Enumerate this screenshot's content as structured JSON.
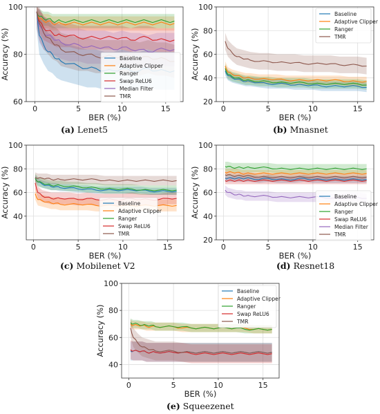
{
  "figure": {
    "captions": [
      {
        "letter": "(a)",
        "name": "Lenet5"
      },
      {
        "letter": "(b)",
        "name": "Mnasnet"
      },
      {
        "letter": "(c)",
        "name": "Mobilenet V2"
      },
      {
        "letter": "(d)",
        "name": "Resnet18"
      },
      {
        "letter": "(e)",
        "name": "Squeezenet"
      }
    ]
  },
  "colors": {
    "Baseline": "#1f77b4",
    "Adaptive Clipper": "#ff7f0e",
    "Ranger": "#2ca02c",
    "Swap ReLU6": "#d62728",
    "Median Filter": "#9467bd",
    "TMR": "#8c564b"
  },
  "chart_data": [
    {
      "type": "line",
      "title": "Lenet5",
      "xlabel": "BER (%)",
      "ylabel": "Accuracy (%)",
      "xlim": [
        -1,
        17
      ],
      "ylim": [
        60,
        100
      ],
      "xticks": [
        0,
        5,
        10,
        15
      ],
      "yticks": [
        60,
        80,
        100
      ],
      "grid": true,
      "legend_position": "lower-right",
      "x": [
        0.2,
        0.5,
        1,
        1.5,
        2,
        2.5,
        3,
        4,
        5,
        6,
        7,
        8,
        9,
        10,
        11,
        12,
        13,
        14,
        15,
        16
      ],
      "series": [
        {
          "name": "Baseline",
          "values": [
            98,
            88,
            84,
            81,
            80,
            78,
            77,
            76,
            75,
            74,
            74,
            73,
            73,
            74,
            73,
            73,
            74,
            73,
            73,
            73
          ],
          "band": 8
        },
        {
          "name": "Adaptive Clipper",
          "values": [
            98,
            95,
            94,
            94,
            93,
            93,
            93,
            93,
            93,
            93,
            93,
            93,
            93,
            93,
            93,
            93,
            93,
            93,
            93,
            93
          ],
          "band": 3
        },
        {
          "name": "Ranger",
          "values": [
            98,
            96,
            95,
            95,
            94,
            94,
            94,
            94,
            94,
            94,
            94,
            94,
            94,
            94,
            94,
            94,
            94,
            94,
            94,
            94
          ],
          "band": 3
        },
        {
          "name": "Swap ReLU6",
          "values": [
            98,
            94,
            91,
            90,
            89,
            88,
            88,
            88,
            87,
            87,
            87,
            87,
            87,
            87,
            86,
            87,
            87,
            86,
            86,
            86
          ],
          "band": 5
        },
        {
          "name": "Median Filter",
          "values": [
            98,
            92,
            89,
            88,
            87,
            86,
            85,
            84,
            84,
            83,
            83,
            83,
            82,
            83,
            82,
            82,
            81,
            82,
            82,
            82
          ],
          "band": 7
        },
        {
          "name": "TMR",
          "values": [
            98,
            93,
            89,
            87,
            85,
            84,
            82,
            81,
            80,
            80,
            79,
            79,
            79,
            79,
            79,
            78,
            79,
            78,
            78,
            77
          ],
          "band": 7
        }
      ]
    },
    {
      "type": "line",
      "title": "Mnasnet",
      "xlabel": "BER (%)",
      "ylabel": "Accuracy (%)",
      "xlim": [
        -0.8,
        16.8
      ],
      "ylim": [
        20,
        100
      ],
      "xticks": [
        0,
        5,
        10,
        15
      ],
      "yticks": [
        20,
        40,
        60,
        80,
        100
      ],
      "grid": true,
      "legend_position": "top-right",
      "x": [
        0.2,
        0.5,
        1,
        1.5,
        2,
        2.5,
        3,
        4,
        5,
        6,
        7,
        8,
        9,
        10,
        11,
        12,
        13,
        14,
        15,
        16
      ],
      "series": [
        {
          "name": "Baseline",
          "values": [
            46,
            42,
            40,
            39,
            38,
            37,
            37,
            36,
            35,
            35,
            35,
            34,
            34,
            34,
            33,
            33,
            33,
            33,
            33,
            32
          ],
          "band": 4
        },
        {
          "name": "Adaptive Clipper",
          "values": [
            50,
            45,
            43,
            42,
            41,
            40,
            40,
            39,
            39,
            39,
            38,
            38,
            38,
            38,
            38,
            38,
            38,
            37,
            37,
            37
          ],
          "band": 4
        },
        {
          "name": "Ranger",
          "values": [
            48,
            43,
            41,
            40,
            39,
            38,
            38,
            37,
            37,
            36,
            36,
            36,
            36,
            35,
            35,
            35,
            35,
            35,
            35,
            34
          ],
          "band": 4
        },
        {
          "name": "TMR",
          "values": [
            71,
            65,
            61,
            58,
            57,
            56,
            55,
            54,
            54,
            53,
            53,
            53,
            52,
            52,
            52,
            52,
            51,
            51,
            51,
            50
          ],
          "band": 7
        }
      ]
    },
    {
      "type": "line",
      "title": "Mobilenet V2",
      "xlabel": "BER (%)",
      "ylabel": "Accuracy (%)",
      "xlim": [
        -0.8,
        16.8
      ],
      "ylim": [
        20,
        100
      ],
      "xticks": [
        0,
        5,
        10,
        15
      ],
      "yticks": [
        40,
        60,
        80,
        100
      ],
      "grid": true,
      "legend_position": "lower-right",
      "x": [
        0.2,
        0.5,
        1,
        1.5,
        2,
        2.5,
        3,
        4,
        5,
        6,
        7,
        8,
        9,
        10,
        11,
        12,
        13,
        14,
        15,
        16
      ],
      "series": [
        {
          "name": "Baseline",
          "values": [
            72,
            69,
            67,
            66,
            65,
            65,
            64,
            64,
            63,
            63,
            62,
            62,
            62,
            62,
            62,
            62,
            61,
            61,
            61,
            61
          ],
          "band": 3
        },
        {
          "name": "Adaptive Clipper",
          "values": [
            59,
            54,
            53,
            52,
            51,
            51,
            50,
            50,
            50,
            50,
            49,
            49,
            49,
            49,
            49,
            49,
            49,
            49,
            49,
            49
          ],
          "band": 5
        },
        {
          "name": "Ranger",
          "values": [
            72,
            69,
            68,
            67,
            66,
            66,
            66,
            65,
            65,
            64,
            64,
            63,
            63,
            63,
            63,
            62,
            62,
            62,
            62,
            62
          ],
          "band": 4
        },
        {
          "name": "Swap ReLU6",
          "values": [
            68,
            60,
            57,
            56,
            55,
            55,
            55,
            55,
            54,
            55,
            54,
            54,
            54,
            54,
            55,
            54,
            54,
            54,
            55,
            55
          ],
          "band": 5
        },
        {
          "name": "TMR",
          "values": [
            73,
            72,
            72,
            72,
            71,
            71,
            71,
            71,
            71,
            71,
            71,
            70,
            70,
            70,
            70,
            70,
            70,
            70,
            70,
            70
          ],
          "band": 4
        }
      ]
    },
    {
      "type": "line",
      "title": "Resnet18",
      "xlabel": "BER (%)",
      "ylabel": "Accuracy (%)",
      "xlim": [
        -0.8,
        16.8
      ],
      "ylim": [
        20,
        100
      ],
      "xticks": [
        0,
        5,
        10,
        15
      ],
      "yticks": [
        20,
        40,
        60,
        80,
        100
      ],
      "grid": true,
      "legend_position": "lower-right",
      "x": [
        0.2,
        0.5,
        1,
        1.5,
        2,
        2.5,
        3,
        4,
        5,
        6,
        7,
        8,
        9,
        10,
        11,
        12,
        13,
        14,
        15,
        16
      ],
      "series": [
        {
          "name": "Baseline",
          "values": [
            72,
            72,
            72,
            72,
            72,
            72,
            72,
            71,
            72,
            71,
            71,
            71,
            72,
            71,
            71,
            71,
            71,
            71,
            71,
            71
          ],
          "band": 3
        },
        {
          "name": "Adaptive Clipper",
          "values": [
            77,
            77,
            77,
            77,
            76,
            76,
            76,
            76,
            76,
            76,
            76,
            76,
            76,
            76,
            76,
            76,
            76,
            76,
            76,
            76
          ],
          "band": 3
        },
        {
          "name": "Ranger",
          "values": [
            82,
            82,
            81,
            81,
            81,
            81,
            81,
            81,
            81,
            80,
            80,
            80,
            80,
            80,
            80,
            80,
            80,
            80,
            80,
            80
          ],
          "band": 4
        },
        {
          "name": "Swap ReLU6",
          "values": [
            70,
            70,
            70,
            70,
            70,
            70,
            70,
            70,
            70,
            70,
            70,
            70,
            70,
            70,
            70,
            70,
            70,
            70,
            70,
            70
          ],
          "band": 3
        },
        {
          "name": "Median Filter",
          "values": [
            62,
            60,
            59,
            58,
            58,
            57,
            57,
            57,
            57,
            56,
            56,
            56,
            56,
            56,
            56,
            55,
            55,
            56,
            56,
            55
          ],
          "band": 4
        },
        {
          "name": "TMR",
          "values": [
            75,
            75,
            74,
            74,
            74,
            74,
            74,
            73,
            73,
            73,
            73,
            73,
            73,
            73,
            73,
            73,
            73,
            73,
            73,
            73
          ],
          "band": 3
        }
      ]
    },
    {
      "type": "line",
      "title": "Squeezenet",
      "xlabel": "BER (%)",
      "ylabel": "Accuracy (%)",
      "xlim": [
        -0.8,
        16.8
      ],
      "ylim": [
        30,
        100
      ],
      "xticks": [
        0,
        5,
        10,
        15
      ],
      "yticks": [
        40,
        60,
        80,
        100
      ],
      "grid": true,
      "legend_position": "top-right",
      "x": [
        0.2,
        0.5,
        1,
        1.5,
        2,
        2.5,
        3,
        4,
        5,
        6,
        7,
        8,
        9,
        10,
        11,
        12,
        13,
        14,
        15,
        16
      ],
      "series": [
        {
          "name": "Baseline",
          "values": [
            50,
            50,
            50,
            50,
            49,
            49,
            49,
            49,
            49,
            49,
            49,
            49,
            49,
            49,
            49,
            49,
            49,
            49,
            49,
            49
          ],
          "band": 7
        },
        {
          "name": "Adaptive Clipper",
          "values": [
            70,
            69,
            69,
            69,
            68,
            68,
            68,
            68,
            68,
            67,
            67,
            67,
            67,
            67,
            67,
            67,
            67,
            66,
            66,
            66
          ],
          "band": 3
        },
        {
          "name": "Ranger",
          "values": [
            71,
            70,
            70,
            69,
            69,
            69,
            68,
            68,
            68,
            68,
            67,
            67,
            67,
            67,
            67,
            67,
            66,
            66,
            66,
            66
          ],
          "band": 3
        },
        {
          "name": "Swap ReLU6",
          "values": [
            51,
            50,
            50,
            50,
            49,
            49,
            49,
            49,
            49,
            49,
            48,
            48,
            48,
            48,
            48,
            48,
            48,
            48,
            48,
            48
          ],
          "band": 7
        },
        {
          "name": "TMR",
          "values": [
            67,
            60,
            56,
            53,
            52,
            51,
            50,
            50,
            50,
            49,
            49,
            49,
            49,
            49,
            49,
            49,
            49,
            49,
            49,
            49
          ],
          "band": 7
        }
      ]
    }
  ]
}
